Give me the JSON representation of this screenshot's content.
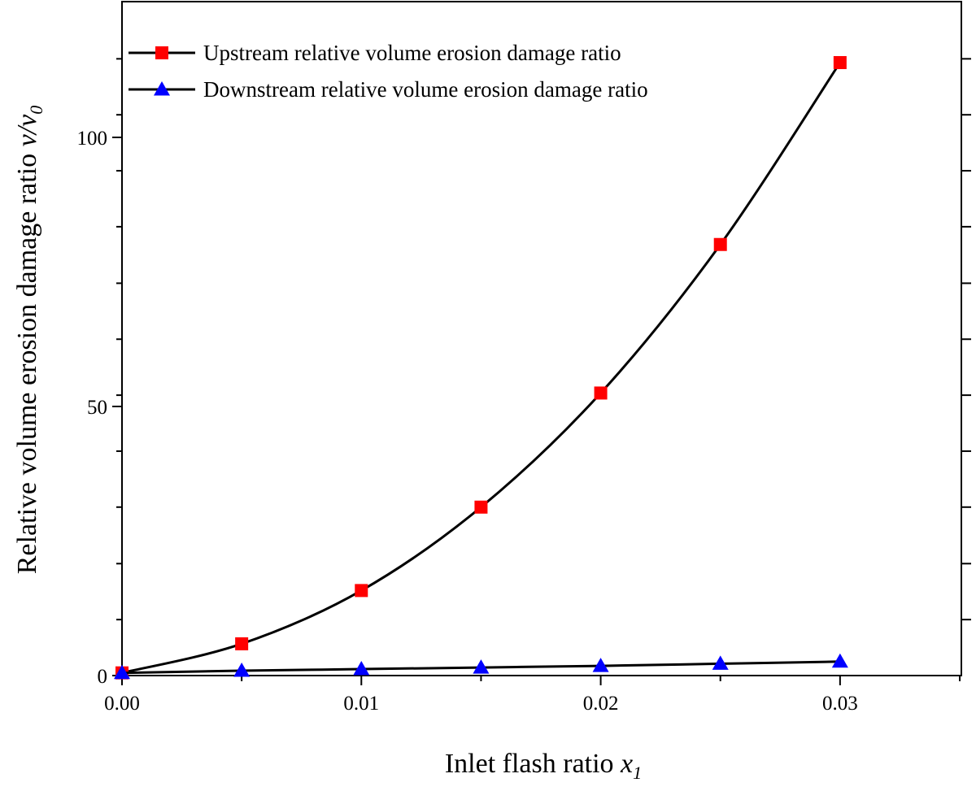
{
  "chart_data": {
    "type": "line",
    "xlabel": "Inlet flash ratio",
    "xlabel_var": "x",
    "xlabel_sub": "1",
    "ylabel": "Relative volume erosion damage ratio",
    "ylabel_var": "v/v",
    "ylabel_sub": "0",
    "xlim": [
      0,
      0.035
    ],
    "ylim": [
      0,
      115
    ],
    "x_ticks": [
      0.0,
      0.01,
      0.02,
      0.03
    ],
    "x_tick_labels": [
      "0.00",
      "0.01",
      "0.02",
      "0.03"
    ],
    "x_minor_ticks": [
      0.005,
      0.015,
      0.025,
      0.035
    ],
    "y_ticks": [
      0,
      50,
      100
    ],
    "y_tick_labels": [
      "0",
      "50",
      "100"
    ],
    "y_minor_ticks": [
      10.4,
      20.8,
      31.3,
      41.7,
      52.1,
      62.5,
      72.9,
      83.4,
      93.8,
      104.2,
      114.6
    ],
    "legend_position": "top-left",
    "x": [
      0.0,
      0.005,
      0.01,
      0.015,
      0.02,
      0.025,
      0.03
    ],
    "series": [
      {
        "name": "Upstream relative volume erosion damage ratio",
        "marker": "square",
        "color": "#ff0000",
        "values": [
          0.5,
          5.9,
          15.8,
          31.3,
          52.5,
          80.1,
          113.9
        ]
      },
      {
        "name": "Downstream relative volume erosion damage ratio",
        "marker": "triangle",
        "color": "#0000ff",
        "values": [
          0.5,
          0.9,
          1.2,
          1.5,
          1.8,
          2.2,
          2.6
        ]
      }
    ],
    "line_color": "#000000"
  }
}
